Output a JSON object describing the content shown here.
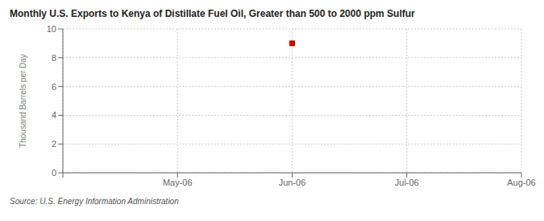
{
  "chart_data": {
    "type": "scatter",
    "title": "Monthly U.S. Exports to Kenya of Distillate Fuel Oil, Greater than 500 to 2000 ppm Sulfur",
    "y_label": "Thousand Barrels per Day",
    "source": "Source: U.S. Energy Information Administration",
    "categories": [
      null,
      "May-06",
      "Jun-06",
      "Jul-06",
      "Aug-06"
    ],
    "values": [
      null,
      null,
      9.0,
      null,
      null
    ],
    "color": "#cc0000",
    "marker": "square",
    "ylim": [
      0,
      10
    ],
    "yticks": [
      0,
      2,
      4,
      6,
      8,
      10
    ],
    "grid": true
  }
}
